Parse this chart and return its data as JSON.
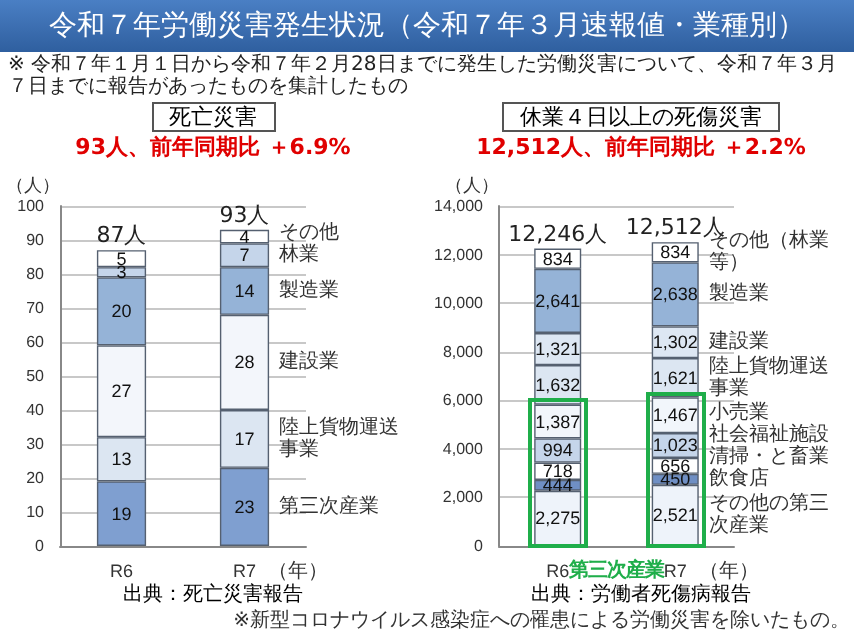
{
  "chart_data": [
    {
      "type": "bar",
      "stacked": true,
      "title": "死亡災害",
      "subtitle": "93人、前年同期比 ＋6.9%",
      "ylabel": "（人）",
      "xlabel": "（年）",
      "categories": [
        "R6",
        "R7"
      ],
      "series": [
        {
          "name": "第三次産業",
          "color": "#7f9fd0",
          "values": [
            19,
            23
          ]
        },
        {
          "name": "陸上貨物運送事業",
          "color": "#dce6f2",
          "values": [
            13,
            17
          ]
        },
        {
          "name": "建設業",
          "color": "#f3f6fb",
          "values": [
            27,
            28
          ]
        },
        {
          "name": "製造業",
          "color": "#95b3d7",
          "values": [
            20,
            14
          ]
        },
        {
          "name": "林業",
          "color": "#c5d5ea",
          "values": [
            3,
            7
          ]
        },
        {
          "name": "その他",
          "color": "#ffffff",
          "values": [
            5,
            4
          ]
        }
      ],
      "totals": [
        "87人",
        "93人"
      ],
      "data_labels": true,
      "grid": "y",
      "ylim": [
        0,
        100
      ],
      "yticks": [
        0,
        10,
        20,
        30,
        40,
        50,
        60,
        70,
        80,
        90,
        100
      ],
      "annotations": [
        "令和７年労働災害発生状況（令和７年３月速報値・業種別）",
        "※ 令和７年１月１日から令和７年２月28日までに発生した労働災害について、令和７年３月７日までに報告があったものを集計したもの",
        "出典：死亡災害報告"
      ]
    },
    {
      "type": "bar",
      "stacked": true,
      "title": "休業４日以上の死傷災害",
      "subtitle": "12,512人、前年同期比 ＋2.2%",
      "ylabel": "（人）",
      "xlabel": "（年）",
      "categories": [
        "R6",
        "R7"
      ],
      "series": [
        {
          "name": "その他の第三次産業",
          "color": "#eef3fa",
          "values": [
            2275,
            2521
          ],
          "value_labels": [
            "2,275",
            "2,521"
          ]
        },
        {
          "name": "飲食店",
          "color": "#6f8fc4",
          "values": [
            444,
            450
          ],
          "value_labels": [
            "444",
            "450"
          ]
        },
        {
          "name": "清掃・と畜業",
          "color": "#ffffff",
          "values": [
            718,
            656
          ],
          "value_labels": [
            "718",
            "656"
          ]
        },
        {
          "name": "社会福祉施設",
          "color": "#c5d5ea",
          "values": [
            994,
            1023
          ],
          "value_labels": [
            "994",
            "1,023"
          ]
        },
        {
          "name": "小売業",
          "color": "#f2f6fb",
          "values": [
            1387,
            1467
          ],
          "value_labels": [
            "1,387",
            "1,467"
          ]
        },
        {
          "name": "陸上貨物運送事業",
          "color": "#dce6f2",
          "values": [
            1632,
            1621
          ],
          "value_labels": [
            "1,632",
            "1,621"
          ]
        },
        {
          "name": "建設業",
          "color": "#dde7f3",
          "values": [
            1321,
            1302
          ],
          "value_labels": [
            "1,321",
            "1,302"
          ]
        },
        {
          "name": "製造業",
          "color": "#95b3d7",
          "values": [
            2641,
            2638
          ],
          "value_labels": [
            "2,641",
            "2,638"
          ]
        },
        {
          "name": "その他（林業等）",
          "color": "#ffffff",
          "values": [
            834,
            834
          ],
          "value_labels": [
            "834",
            "834"
          ]
        }
      ],
      "totals": [
        "12,246人",
        "12,512人"
      ],
      "data_labels": true,
      "grid": "y",
      "ylim": [
        0,
        14000
      ],
      "yticks": [
        0,
        {
          "value": 2000,
          "label": "2,000"
        },
        {
          "value": 4000,
          "label": "4,000"
        },
        {
          "value": 6000,
          "label": "6,000"
        },
        {
          "value": 8000,
          "label": "8,000"
        },
        {
          "value": 10000,
          "label": "10,000"
        },
        {
          "value": 12000,
          "label": "12,000"
        },
        {
          "value": 14000,
          "label": "14,000"
        }
      ],
      "annotations": [
        "出典：労働者死傷病報告",
        "※新型コロナウイルス感染症への罹患による労働災害を除いたもの。",
        "第三次産業"
      ]
    }
  ]
}
